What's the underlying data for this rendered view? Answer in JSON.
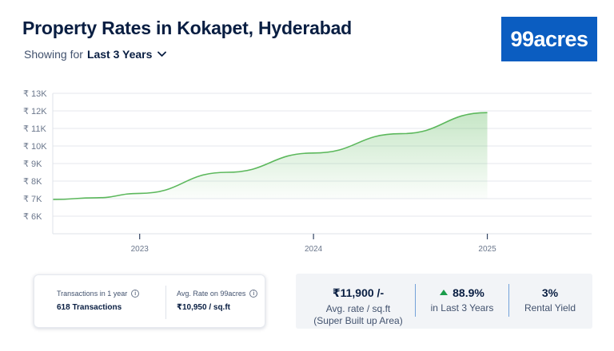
{
  "header": {
    "title": "Property Rates in Kokapet, Hyderabad",
    "showing_label": "Showing for",
    "period": "Last 3 Years",
    "chevron_icon": "chevron-down-icon",
    "logo_text": "99acres",
    "logo_color": "#0b5dc1"
  },
  "chart_data": {
    "type": "area",
    "title": "",
    "xlabel": "",
    "ylabel": "",
    "y_ticks": [
      "₹ 6K",
      "₹ 7K",
      "₹ 8K",
      "₹ 9K",
      "₹ 10K",
      "₹ 11K",
      "₹ 12K",
      "₹ 13K"
    ],
    "y_tick_values": [
      6000,
      7000,
      8000,
      9000,
      10000,
      11000,
      12000,
      13000
    ],
    "x_ticks": [
      "2023",
      "2024",
      "2025"
    ],
    "x_tick_values": [
      2023,
      2024,
      2025
    ],
    "ylim": [
      5000,
      13000
    ],
    "xlim": [
      2022.5,
      2025.6
    ],
    "grid": true,
    "line_color": "#5cb85c",
    "series": [
      {
        "x": [
          2022.5,
          2022.75,
          2023.0,
          2023.5,
          2024.0,
          2024.5,
          2025.0
        ],
        "values": [
          6950,
          7050,
          7300,
          8500,
          9600,
          10700,
          11900
        ]
      }
    ]
  },
  "summary_left": {
    "transactions_label": "Transactions in 1 year",
    "transactions_value": "618 Transactions",
    "avg_rate_label": "Avg. Rate on 99acres",
    "avg_rate_value": "₹10,950 / sq.ft",
    "info_icon": "info-icon"
  },
  "summary_right": {
    "avg_rate_value": "₹11,900 /-",
    "avg_rate_label": "Avg. rate / sq.ft",
    "avg_rate_sub": "(Super Built up Area)",
    "growth_value": "88.9%",
    "growth_label": "in Last 3 Years",
    "growth_color": "#1a9c4a",
    "yield_value": "3%",
    "yield_label": "Rental Yield"
  }
}
